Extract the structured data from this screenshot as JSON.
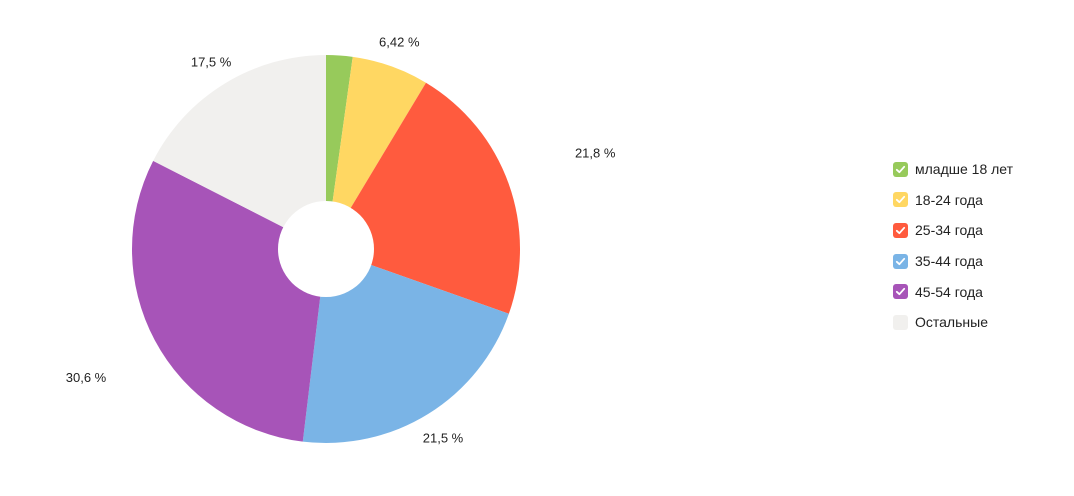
{
  "chart_data": {
    "type": "pie",
    "donut": true,
    "slices": [
      {
        "name": "младше 18 лет",
        "value": 2.2,
        "color": "#97ca5b",
        "label": ""
      },
      {
        "name": "18-24 года",
        "value": 6.42,
        "color": "#ffd762",
        "label": "6,42 %"
      },
      {
        "name": "25-34 года",
        "value": 21.8,
        "color": "#ff5b3e",
        "label": "21,8 %"
      },
      {
        "name": "35-44 года",
        "value": 21.5,
        "color": "#7ab4e6",
        "label": "21,5 %"
      },
      {
        "name": "45-54 года",
        "value": 30.6,
        "color": "#a754b8",
        "label": "30,6 %"
      },
      {
        "name": "Остальные",
        "value": 17.5,
        "color": "#f1f0ee",
        "label": "17,5 %"
      }
    ],
    "legend": {
      "position": "right",
      "items": [
        {
          "label": "младше 18 лет",
          "color": "#97ca5b",
          "checked": true
        },
        {
          "label": "18-24 года",
          "color": "#ffd762",
          "checked": true
        },
        {
          "label": "25-34 года",
          "color": "#ff5b3e",
          "checked": true
        },
        {
          "label": "35-44 года",
          "color": "#7ab4e6",
          "checked": true
        },
        {
          "label": "45-54 года",
          "color": "#a754b8",
          "checked": true
        },
        {
          "label": "Остальные",
          "color": "#f1f0ee",
          "checked": false
        }
      ]
    }
  }
}
